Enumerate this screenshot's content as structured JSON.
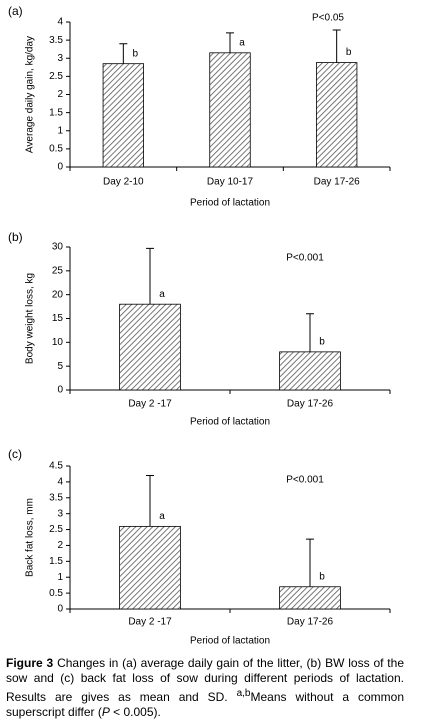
{
  "chart_data": [
    {
      "type": "bar",
      "panel": "(a)",
      "annotation": "P<0.05",
      "ylabel": "Average daily gain, kg/day",
      "xlabel": "Period of lactation",
      "categories": [
        "Day 2-10",
        "Day 10-17",
        "Day 17-26"
      ],
      "values": [
        2.85,
        3.15,
        2.88
      ],
      "errors": [
        0.55,
        0.55,
        0.9
      ],
      "letters": [
        "b",
        "a",
        "b"
      ],
      "ylim": [
        0,
        4
      ],
      "yticks": [
        0,
        0.5,
        1,
        1.5,
        2,
        2.5,
        3,
        3.5,
        4
      ],
      "color": "#555555",
      "grid": false
    },
    {
      "type": "bar",
      "panel": "(b)",
      "annotation": "P<0.001",
      "ylabel": "Body weight loss, kg",
      "xlabel": "Period of lactation",
      "categories": [
        "Day 2 -17",
        "Day 17-26"
      ],
      "values": [
        18,
        8
      ],
      "errors": [
        11.7,
        8
      ],
      "letters": [
        "a",
        "b"
      ],
      "ylim": [
        0,
        30
      ],
      "yticks": [
        0,
        5,
        10,
        15,
        20,
        25,
        30
      ],
      "color": "#555555",
      "grid": false
    },
    {
      "type": "bar",
      "panel": "(c)",
      "annotation": "P<0.001",
      "ylabel": "Back fat loss, mm",
      "xlabel": "Period of lactation",
      "categories": [
        "Day 2 -17",
        "Day 17-26"
      ],
      "values": [
        2.6,
        0.7
      ],
      "errors": [
        1.6,
        1.5
      ],
      "letters": [
        "a",
        "b"
      ],
      "ylim": [
        0,
        4.5
      ],
      "yticks": [
        0,
        0.5,
        1,
        1.5,
        2,
        2.5,
        3,
        3.5,
        4,
        4.5
      ],
      "color": "#555555",
      "grid": false
    }
  ],
  "caption": {
    "label": "Figure 3",
    "text1": "Changes in (a) average daily gain of the litter, (b) BW loss of the sow and (c) back fat loss of sow during different periods of lactation. Results are gives as mean and SD.",
    "sup": "a,b",
    "text2": "Means without a common superscript differ (",
    "italic": "P",
    "text3": " < 0.005)."
  }
}
